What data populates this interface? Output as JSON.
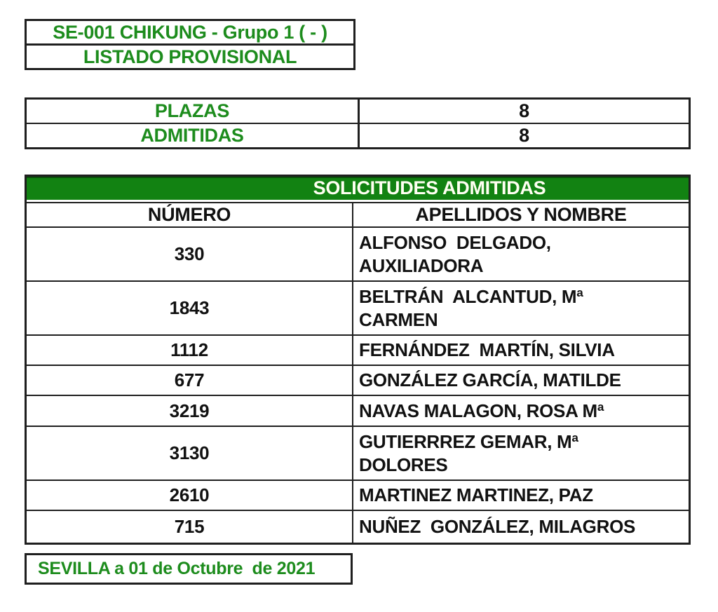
{
  "colors": {
    "heading_green": "#1d8c1d",
    "bar_green": "#128212",
    "bar_text": "#fffff2",
    "border_black": "#1f1f1f",
    "body_text": "#111111"
  },
  "title_box": {
    "line1": "SE-001 CHIKUNG - Grupo 1 ( - )",
    "line2": "LISTADO PROVISIONAL"
  },
  "summary": {
    "rows": [
      {
        "label": "PLAZAS",
        "value": "8"
      },
      {
        "label": "ADMITIDAS",
        "value": "8"
      }
    ]
  },
  "admitted": {
    "title": "SOLICITUDES ADMITIDAS",
    "columns": {
      "number": "NÚMERO",
      "name": "APELLIDOS Y NOMBRE"
    },
    "rows": [
      {
        "number": "330",
        "name": "ALFONSO  DELGADO,\nAUXILIADORA"
      },
      {
        "number": "1843",
        "name": "BELTRÁN  ALCANTUD, Mª\nCARMEN"
      },
      {
        "number": "1112",
        "name": "FERNÁNDEZ  MARTÍN, SILVIA"
      },
      {
        "number": "677",
        "name": "GONZÁLEZ GARCÍA, MATILDE"
      },
      {
        "number": "3219",
        "name": "NAVAS MALAGON, ROSA Mª"
      },
      {
        "number": "3130",
        "name": "GUTIERRREZ GEMAR, Mª\nDOLORES"
      },
      {
        "number": "2610",
        "name": "MARTINEZ MARTINEZ, PAZ"
      },
      {
        "number": "715",
        "name": "NUÑEZ  GONZÁLEZ, MILAGROS"
      }
    ]
  },
  "footer": {
    "date_line": "SEVILLA a 01 de Octubre  de 2021"
  }
}
